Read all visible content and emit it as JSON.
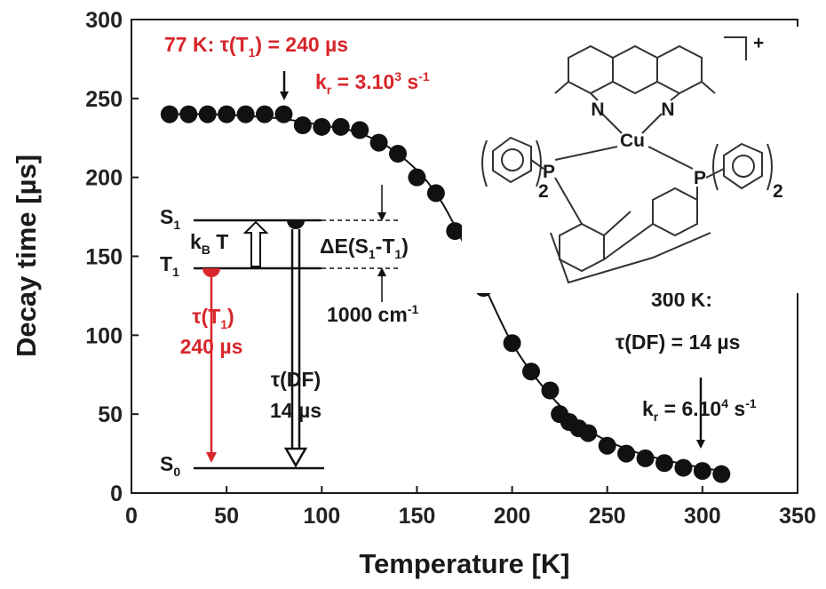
{
  "chart_data": {
    "type": "scatter",
    "xlabel": "Temperature [K]",
    "ylabel": "Decay time [µs]",
    "xlim": [
      0,
      350
    ],
    "ylim": [
      0,
      300
    ],
    "xticks": [
      "0",
      "50",
      "100",
      "150",
      "200",
      "250",
      "300",
      "350"
    ],
    "yticks": [
      "0",
      "50",
      "100",
      "150",
      "200",
      "250",
      "300"
    ],
    "grid": false,
    "series": [
      {
        "kind": "points",
        "x": [
          20,
          30,
          40,
          50,
          60,
          70,
          80,
          90,
          100,
          110,
          120,
          130,
          140,
          150,
          160,
          170,
          185,
          200,
          210,
          220,
          225,
          230,
          235,
          240,
          250,
          260,
          270,
          280,
          290,
          300,
          310
        ],
        "y": [
          240,
          240,
          240,
          240,
          240,
          240,
          240,
          233,
          232,
          232,
          230,
          222,
          215,
          200,
          190,
          166,
          130,
          95,
          77,
          65,
          50,
          45,
          41,
          38,
          30,
          25,
          22,
          19,
          16,
          14,
          12
        ]
      },
      {
        "kind": "fit",
        "x": [
          20,
          40,
          60,
          80,
          100,
          120,
          140,
          160,
          180,
          200,
          220,
          240,
          260,
          280,
          300,
          310
        ],
        "y": [
          240,
          240,
          239,
          237,
          233,
          228,
          215,
          190,
          145,
          95,
          62,
          40,
          28,
          21,
          16,
          14
        ]
      }
    ],
    "annotations": {
      "top_left_a": "77 K: τ(T",
      "top_left_sub": "1",
      "top_left_b": ") = 240 µs",
      "kr1_a": "k",
      "kr1_sub": "r",
      "kr1_b": " = 3.10",
      "kr1_sup": "3",
      "kr1_c": " s",
      "kr1_sup2": "-1",
      "label_300K": "300 K:",
      "tau_df_300": "τ(DF) = 14 µs",
      "kr2_a": "k",
      "kr2_sub": "r",
      "kr2_b": " = 6.10",
      "kr2_sup": "4",
      "kr2_c": " s",
      "kr2_sup2": "-1"
    },
    "energy_diagram": {
      "s1": "S",
      "s1_sub": "1",
      "t1": "T",
      "t1_sub": "1",
      "s0": "S",
      "s0_sub": "0",
      "kbt_a": "k",
      "kbt_sub": "B",
      "kbt_b": " T",
      "delta_a": "ΔE(S",
      "delta_sub1": "1",
      "delta_b": "-T",
      "delta_sub2": "1",
      "delta_c": ")",
      "gap_a": "1000 cm",
      "gap_sup": "-1",
      "tau_t1_a": "τ(T",
      "tau_t1_sub": "1",
      "tau_t1_b": ")",
      "tau_t1_val": "240 µs",
      "tau_df": "τ(DF)",
      "tau_df_val": "14 µs"
    },
    "molecule": {
      "atom_n1": "N",
      "atom_n2": "N",
      "atom_cu": "Cu",
      "atom_p1": "P",
      "atom_p2": "P",
      "sub_left": "2",
      "sub_right": "2",
      "charge": "+"
    }
  },
  "colors": {
    "points": "#111111",
    "fit": "#111111",
    "red": "#d8262b",
    "axis": "#1a1a1a",
    "molecule_line": "#333333"
  }
}
